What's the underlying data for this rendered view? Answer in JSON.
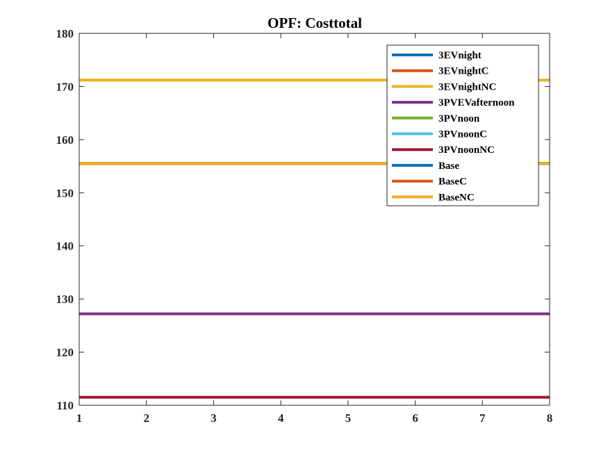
{
  "chart_data": {
    "type": "line",
    "title": "OPF: Costtotal",
    "xlabel": "",
    "ylabel": "",
    "xlim": [
      1,
      8
    ],
    "ylim": [
      110,
      180
    ],
    "xticks": [
      1,
      2,
      3,
      4,
      5,
      6,
      7,
      8
    ],
    "yticks": [
      110,
      120,
      130,
      140,
      150,
      160,
      170,
      180
    ],
    "grid": false,
    "legend_position": "top-right",
    "x": [
      1,
      2,
      3,
      4,
      5,
      6,
      7,
      8
    ],
    "series": [
      {
        "name": "3EVnight",
        "color": "#0072BD",
        "values": [
          155.5,
          155.5,
          155.5,
          155.5,
          155.5,
          155.5,
          155.5,
          155.5
        ]
      },
      {
        "name": "3EVnightC",
        "color": "#D95319",
        "values": [
          155.5,
          155.5,
          155.5,
          155.5,
          155.5,
          155.5,
          155.5,
          155.5
        ]
      },
      {
        "name": "3EVnightNC",
        "color": "#EDB120",
        "values": [
          171.2,
          171.2,
          171.2,
          171.2,
          171.2,
          171.2,
          171.2,
          171.2
        ]
      },
      {
        "name": "3PVEVafternoon",
        "color": "#7E2F8E",
        "values": [
          127.2,
          127.2,
          127.2,
          127.2,
          127.2,
          127.2,
          127.2,
          127.2
        ]
      },
      {
        "name": "3PVnoon",
        "color": "#77AC30",
        "values": [
          111.5,
          111.5,
          111.5,
          111.5,
          111.5,
          111.5,
          111.5,
          111.5
        ]
      },
      {
        "name": "3PVnoonC",
        "color": "#4DBEEE",
        "values": [
          111.5,
          111.5,
          111.5,
          111.5,
          111.5,
          111.5,
          111.5,
          111.5
        ]
      },
      {
        "name": "3PVnoonNC",
        "color": "#A2142F",
        "values": [
          111.5,
          111.5,
          111.5,
          111.5,
          111.5,
          111.5,
          111.5,
          111.5
        ]
      },
      {
        "name": "Base",
        "color": "#0072BD",
        "values": [
          155.5,
          155.5,
          155.5,
          155.5,
          155.5,
          155.5,
          155.5,
          155.5
        ]
      },
      {
        "name": "BaseC",
        "color": "#D95319",
        "values": [
          155.5,
          155.5,
          155.5,
          155.5,
          155.5,
          155.5,
          155.5,
          155.5
        ]
      },
      {
        "name": "BaseNC",
        "color": "#EDB120",
        "values": [
          155.5,
          155.5,
          155.5,
          155.5,
          155.5,
          155.5,
          155.5,
          155.5
        ]
      }
    ]
  }
}
